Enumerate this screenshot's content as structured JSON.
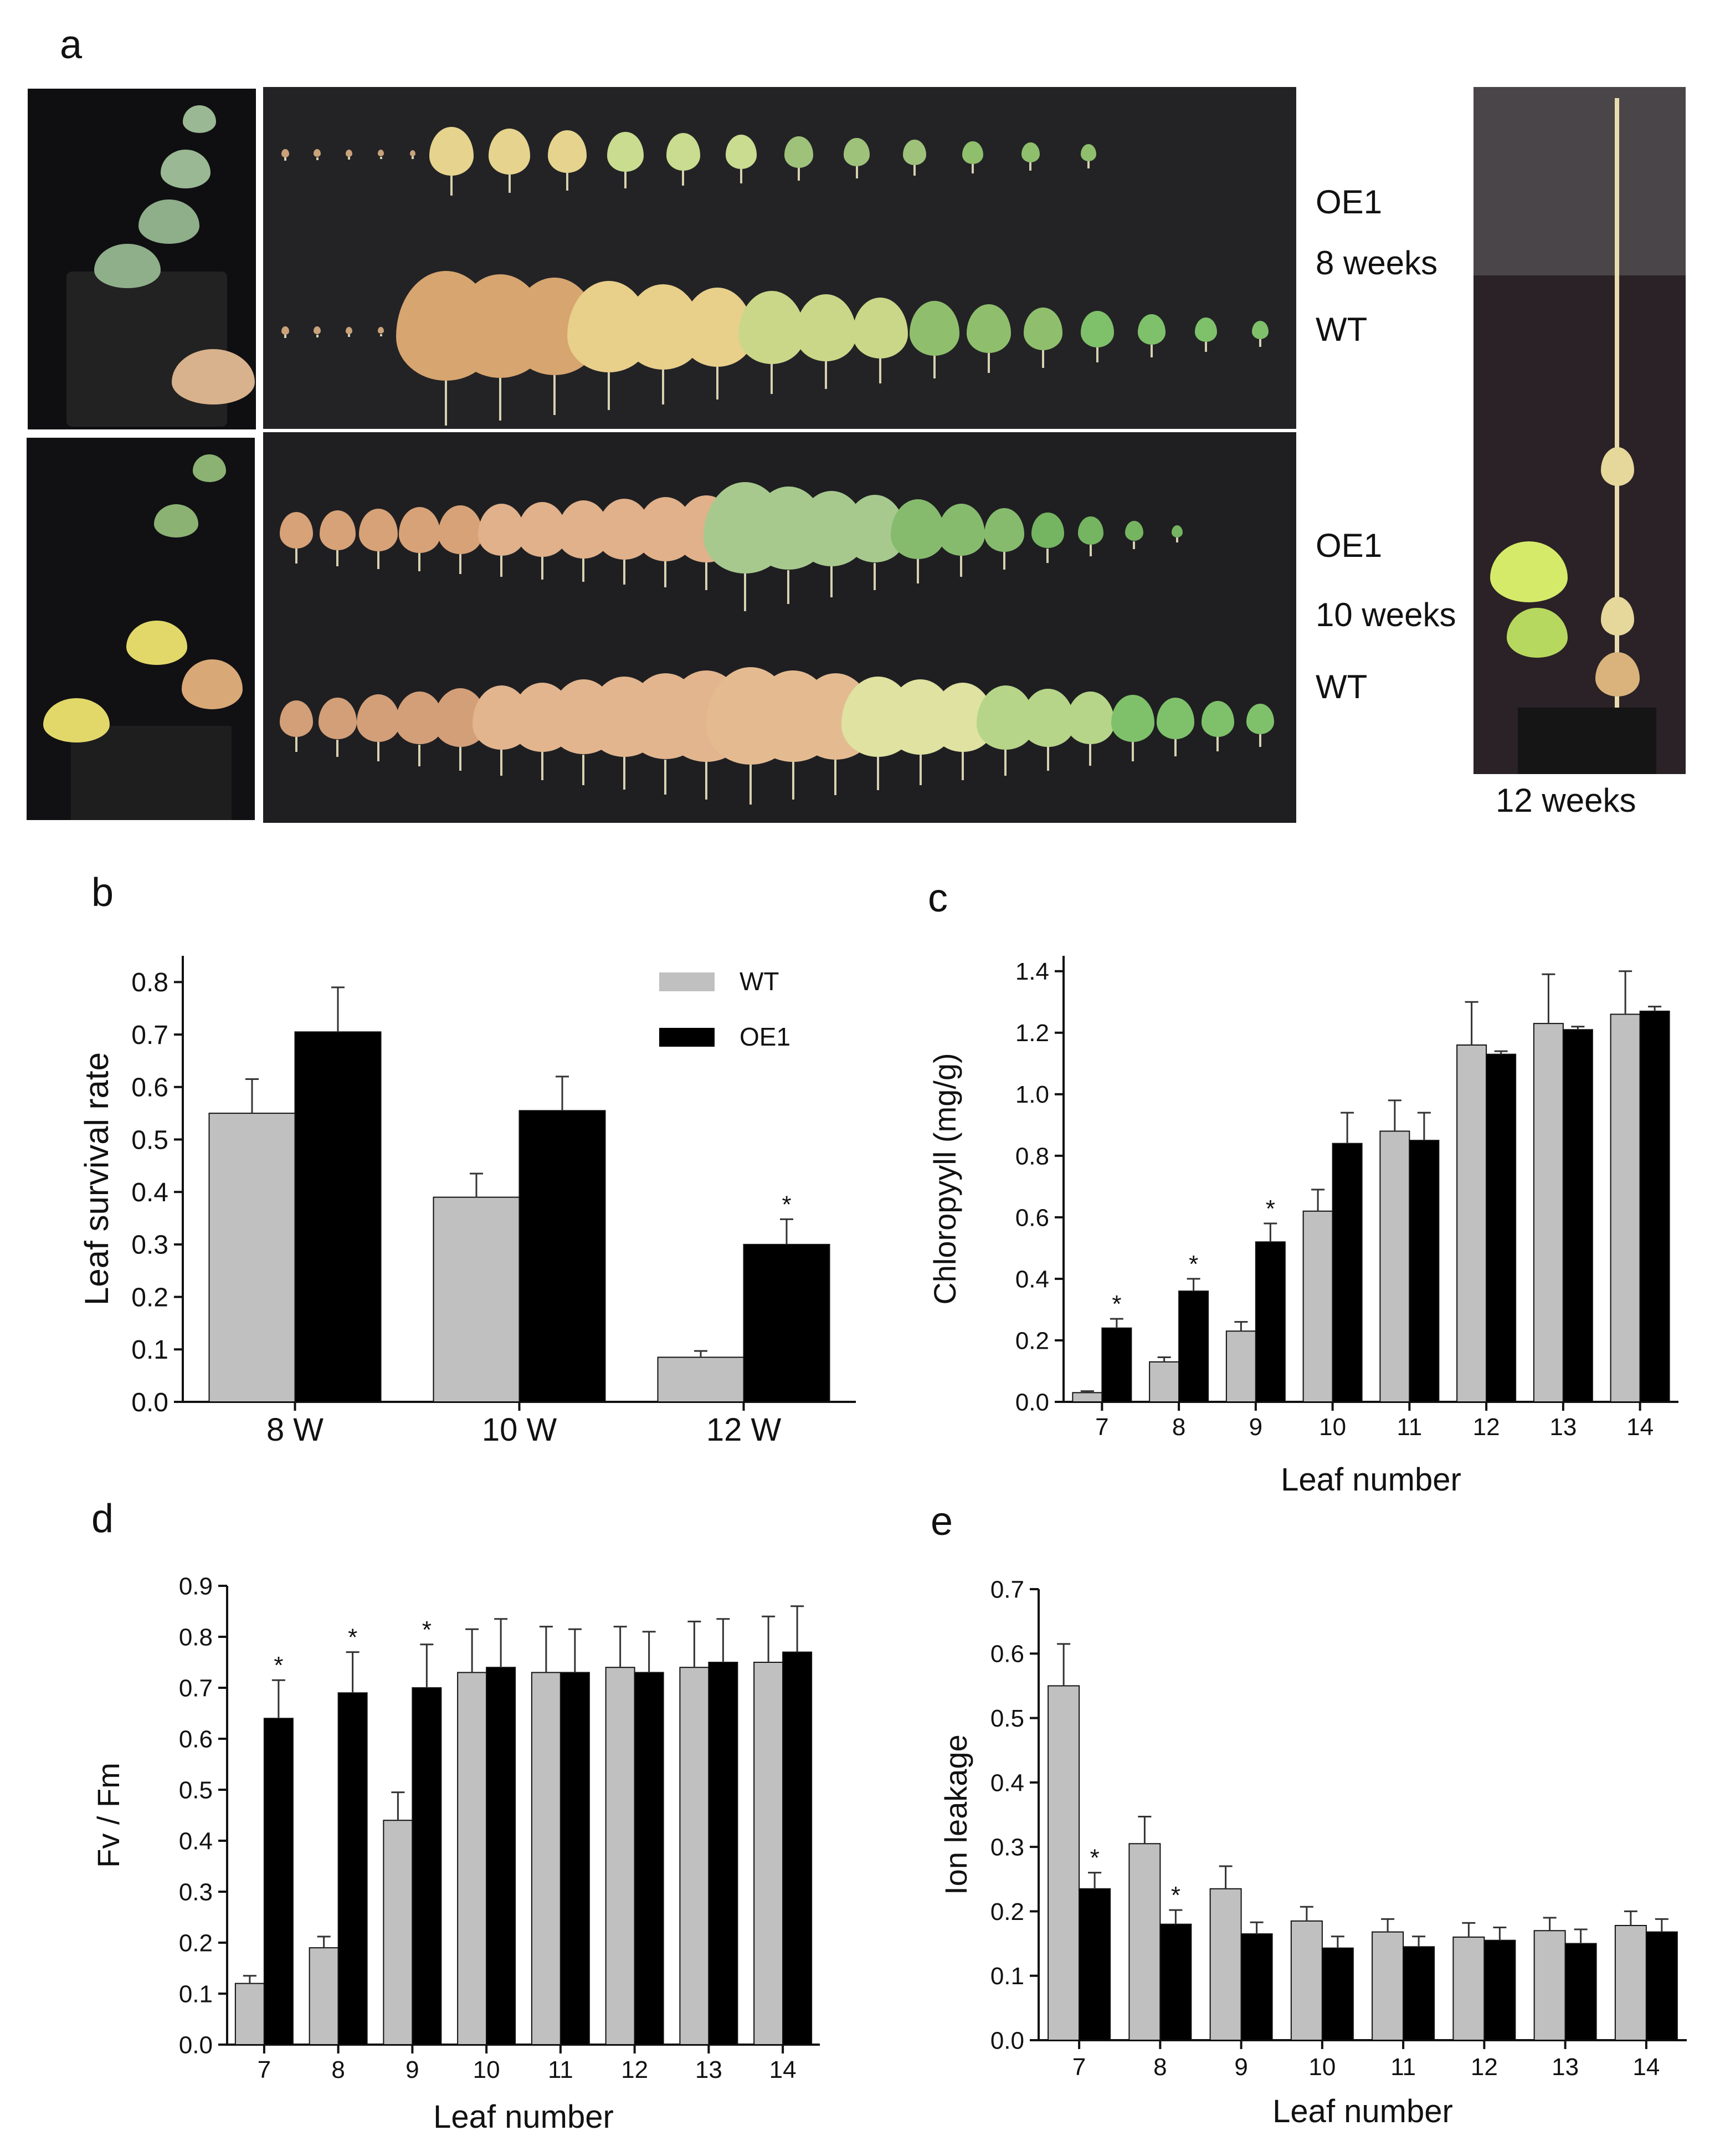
{
  "panels": {
    "a": "a",
    "b": "b",
    "c": "c",
    "d": "d",
    "e": "e"
  },
  "photo_panel": {
    "row1_top": "OE1",
    "row1_mid": "8 weeks",
    "row1_bot": "WT",
    "row2_top": "OE1",
    "row2_mid": "10 weeks",
    "row2_bot": "WT",
    "tall_caption": "12 weeks"
  },
  "colors": {
    "wt": "#c0c0c0",
    "oe1": "#000000",
    "axis": "#111111"
  },
  "chart_data": [
    {
      "id": "b",
      "type": "bar",
      "title": "",
      "xlabel": "",
      "ylabel": "Leaf survival rate",
      "categories": [
        "8 W",
        "10 W",
        "12 W"
      ],
      "ylim": [
        0,
        0.85
      ],
      "yticks": [
        0.0,
        0.1,
        0.2,
        0.3,
        0.4,
        0.5,
        0.6,
        0.7,
        0.8
      ],
      "ytick_labels": [
        "0.0",
        "0.1",
        "0.2",
        "0.3",
        "0.4",
        "0.5",
        "0.6",
        "0.7",
        "0.8"
      ],
      "legend": [
        "WT",
        "OE1"
      ],
      "legend_position": "top-right",
      "series": [
        {
          "name": "WT",
          "values": [
            0.55,
            0.39,
            0.085
          ],
          "errors": [
            0.065,
            0.045,
            0.012
          ],
          "sig": [
            "",
            "",
            ""
          ]
        },
        {
          "name": "OE1",
          "values": [
            0.705,
            0.555,
            0.3
          ],
          "errors": [
            0.085,
            0.065,
            0.048
          ],
          "sig": [
            "",
            "",
            "*"
          ]
        }
      ]
    },
    {
      "id": "c",
      "type": "bar",
      "title": "",
      "xlabel": "Leaf number",
      "ylabel": "Chloropyyll (mg/g)",
      "categories": [
        "7",
        "8",
        "9",
        "10",
        "11",
        "12",
        "13",
        "14"
      ],
      "ylim": [
        0,
        1.45
      ],
      "yticks": [
        0.0,
        0.2,
        0.4,
        0.6,
        0.8,
        1.0,
        1.2,
        1.4
      ],
      "ytick_labels": [
        "0.0",
        "0.2",
        "0.4",
        "0.6",
        "0.8",
        "1.0",
        "1.2",
        "1.4"
      ],
      "series": [
        {
          "name": "WT",
          "values": [
            0.03,
            0.13,
            0.23,
            0.62,
            0.88,
            1.16,
            1.23,
            1.26
          ],
          "errors": [
            0.005,
            0.015,
            0.03,
            0.07,
            0.1,
            0.14,
            0.16,
            0.14
          ],
          "sig": [
            "",
            "",
            "",
            "",
            "",
            "",
            "",
            ""
          ]
        },
        {
          "name": "OE1",
          "values": [
            0.24,
            0.36,
            0.52,
            0.84,
            0.85,
            1.13,
            1.21,
            1.27
          ],
          "errors": [
            0.03,
            0.04,
            0.06,
            0.1,
            0.09,
            0.01,
            0.01,
            0.015
          ],
          "sig": [
            "*",
            "*",
            "*",
            "",
            "",
            "",
            "",
            ""
          ]
        }
      ]
    },
    {
      "id": "d",
      "type": "bar",
      "title": "",
      "xlabel": "Leaf number",
      "ylabel": "Fv / Fm",
      "categories": [
        "7",
        "8",
        "9",
        "10",
        "11",
        "12",
        "13",
        "14"
      ],
      "ylim": [
        0,
        0.9
      ],
      "yticks": [
        0.0,
        0.1,
        0.2,
        0.3,
        0.4,
        0.5,
        0.6,
        0.7,
        0.8,
        0.9
      ],
      "ytick_labels": [
        "0.0",
        "0.1",
        "0.2",
        "0.3",
        "0.4",
        "0.5",
        "0.6",
        "0.7",
        "0.8",
        "0.9"
      ],
      "series": [
        {
          "name": "WT",
          "values": [
            0.12,
            0.19,
            0.44,
            0.73,
            0.73,
            0.74,
            0.74,
            0.75
          ],
          "errors": [
            0.015,
            0.022,
            0.055,
            0.085,
            0.09,
            0.08,
            0.09,
            0.09
          ],
          "sig": [
            "",
            "",
            "",
            "",
            "",
            "",
            "",
            ""
          ]
        },
        {
          "name": "OE1",
          "values": [
            0.64,
            0.69,
            0.7,
            0.74,
            0.73,
            0.73,
            0.75,
            0.77
          ],
          "errors": [
            0.075,
            0.08,
            0.085,
            0.095,
            0.085,
            0.08,
            0.085,
            0.09
          ],
          "sig": [
            "*",
            "*",
            "*",
            "",
            "",
            "",
            "",
            ""
          ]
        }
      ]
    },
    {
      "id": "e",
      "type": "bar",
      "title": "",
      "xlabel": "Leaf number",
      "ylabel": "Ion leakage",
      "categories": [
        "7",
        "8",
        "9",
        "10",
        "11",
        "12",
        "13",
        "14"
      ],
      "ylim": [
        0,
        0.7
      ],
      "yticks": [
        0.0,
        0.1,
        0.2,
        0.3,
        0.4,
        0.5,
        0.6,
        0.7
      ],
      "ytick_labels": [
        "0.0",
        "0.1",
        "0.2",
        "0.3",
        "0.4",
        "0.5",
        "0.6",
        "0.7"
      ],
      "series": [
        {
          "name": "WT",
          "values": [
            0.55,
            0.305,
            0.235,
            0.185,
            0.168,
            0.16,
            0.17,
            0.178
          ],
          "errors": [
            0.065,
            0.042,
            0.035,
            0.022,
            0.02,
            0.022,
            0.02,
            0.022
          ],
          "sig": [
            "",
            "",
            "",
            "",
            "",
            "",
            "",
            ""
          ]
        },
        {
          "name": "OE1",
          "values": [
            0.235,
            0.18,
            0.165,
            0.143,
            0.145,
            0.155,
            0.15,
            0.168
          ],
          "errors": [
            0.025,
            0.022,
            0.018,
            0.018,
            0.016,
            0.02,
            0.022,
            0.02
          ],
          "sig": [
            "*",
            "*",
            "",
            "",
            "",
            "",
            "",
            ""
          ]
        }
      ]
    }
  ]
}
